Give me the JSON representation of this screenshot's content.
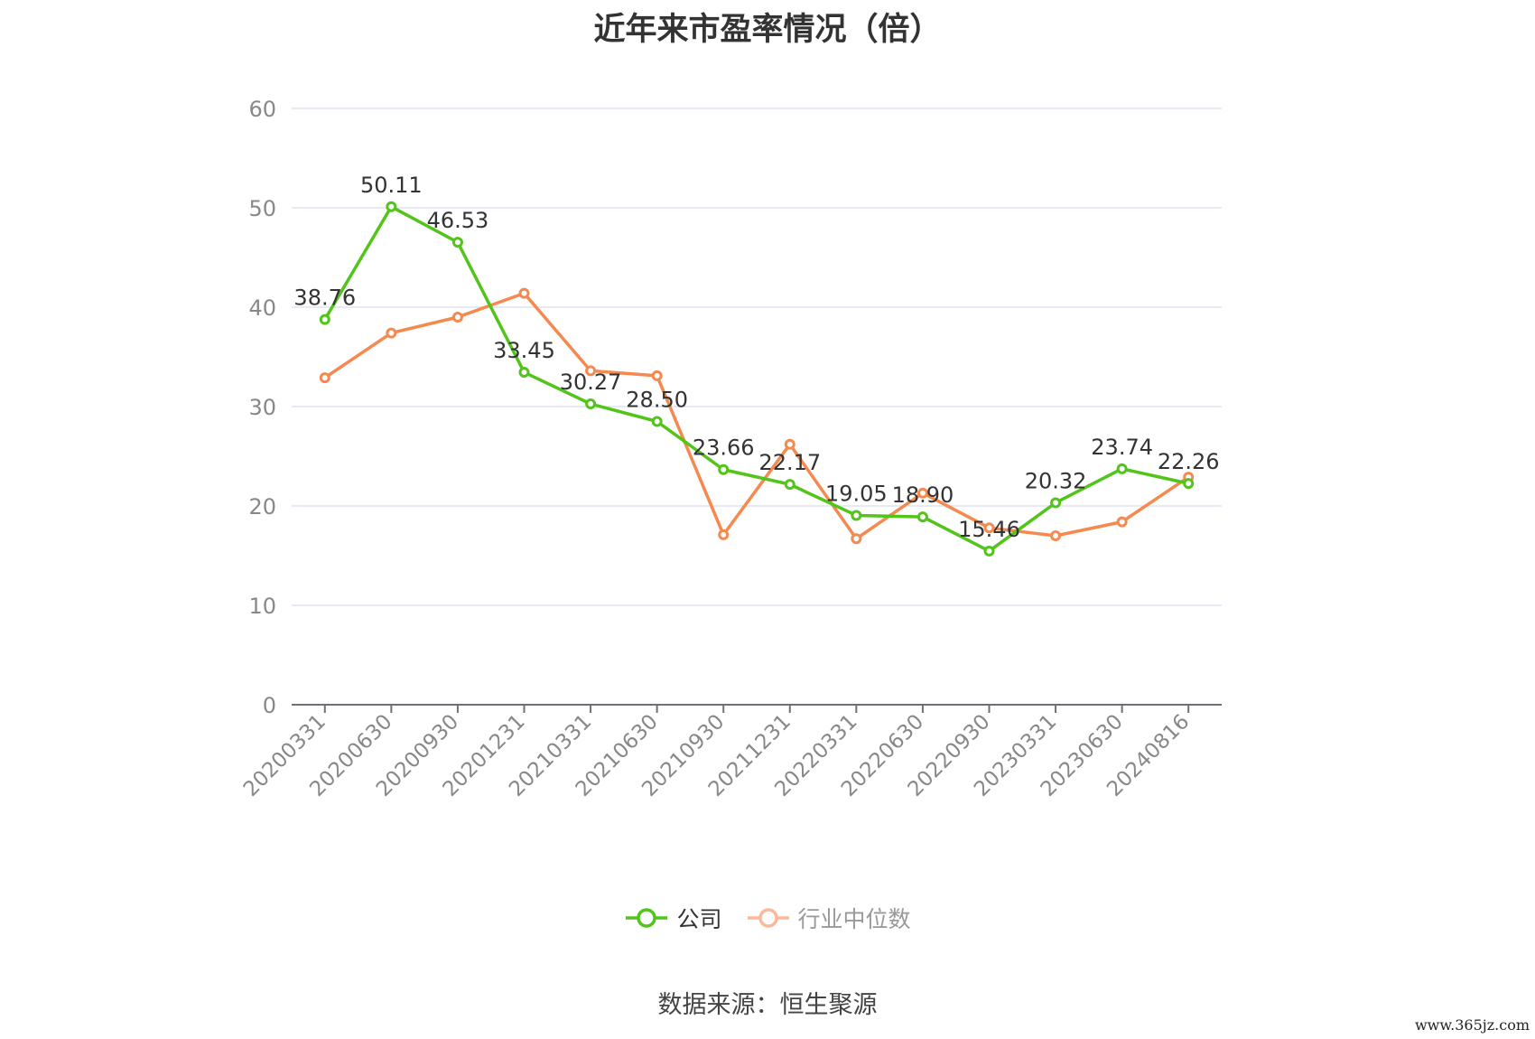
{
  "chart_data": {
    "type": "line",
    "title": "近年来市盈率情况（倍）",
    "categories": [
      "20200331",
      "20200630",
      "20200930",
      "20201231",
      "20210331",
      "20210630",
      "20210930",
      "20211231",
      "20220331",
      "20220630",
      "20220930",
      "20230331",
      "20230630",
      "20240816"
    ],
    "ylim": [
      0,
      60
    ],
    "yticks": [
      0,
      10,
      20,
      30,
      40,
      50,
      60
    ],
    "grid": true,
    "legend_position": "bottom",
    "series": [
      {
        "name": "公司",
        "color": "#52c41a",
        "labeled": true,
        "values": [
          38.76,
          50.11,
          46.53,
          33.45,
          30.27,
          28.5,
          23.66,
          22.17,
          19.05,
          18.9,
          15.46,
          20.32,
          23.74,
          22.26
        ]
      },
      {
        "name": "行业中位数",
        "color": "#f5894f",
        "labeled": false,
        "values": [
          32.9,
          37.4,
          39.0,
          41.4,
          33.6,
          33.1,
          17.1,
          26.2,
          16.7,
          21.3,
          17.8,
          17.0,
          18.4,
          22.9
        ]
      }
    ]
  },
  "legend": {
    "company": "公司",
    "industry": "行业中位数"
  },
  "source": "数据来源：恒生聚源",
  "watermark": "www.365jz.com"
}
